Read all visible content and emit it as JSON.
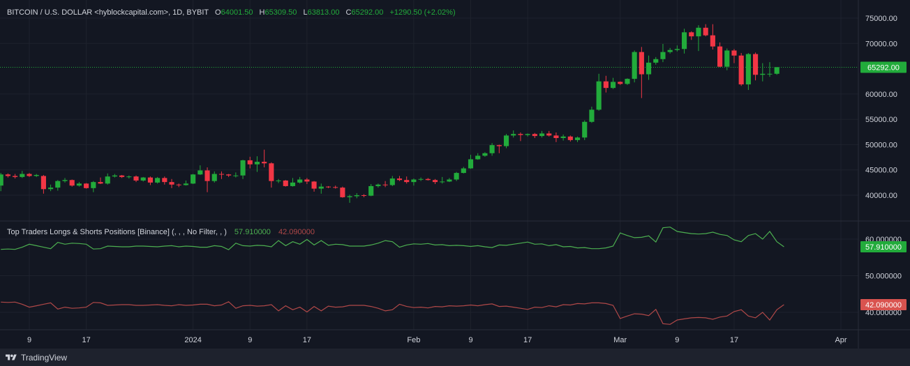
{
  "header": {
    "symbol": "BITCOIN / U.S. DOLLAR <hyblockcapital.com>, 1D, BYBIT",
    "o_label": "O",
    "o_value": "64001.50",
    "h_label": "H",
    "h_value": "65309.50",
    "l_label": "L",
    "l_value": "63813.00",
    "c_label": "C",
    "c_value": "65292.00",
    "change": "+1290.50 (+2.02%)"
  },
  "indicator": {
    "title": "Top Traders Longs & Shorts Positions [Binance] (, , , No Filter, , )",
    "long_value": "57.910000",
    "short_value": "42.090000"
  },
  "footer": {
    "brand": "TradingView"
  },
  "colors": {
    "background": "#131722",
    "up": "#26a69a",
    "candle_up": "#089981",
    "candle_up_draw": "#22ab3b",
    "candle_down": "#f23645",
    "long_line": "#4caf50",
    "short_line": "#b04848",
    "last_price": "#22ab3b"
  },
  "chart_data": [
    {
      "type": "candlestick",
      "title": "BITCOIN / U.S. DOLLAR <hyblockcapital.com>, 1D, BYBIT",
      "last_price": 65292,
      "last_price_label": "65292.00",
      "y_ticks": [
        "75000.00",
        "70000.00",
        "60000.00",
        "55000.00",
        "50000.00",
        "45000.00",
        "40000.00"
      ],
      "y_tick_values": [
        75000,
        70000,
        60000,
        55000,
        50000,
        45000,
        40000
      ],
      "x_ticks": [
        "9",
        "17",
        "2024",
        "9",
        "17",
        "Feb",
        "9",
        "17",
        "Mar",
        "9",
        "17",
        "Apr"
      ],
      "x_tick_dates": [
        "2023-12-09",
        "2023-12-17",
        "2024-01-01",
        "2024-01-09",
        "2024-01-17",
        "2024-02-01",
        "2024-02-09",
        "2024-02-17",
        "2024-03-01",
        "2024-03-09",
        "2024-03-17",
        "2024-04-01"
      ],
      "dates": [
        "2023-12-05",
        "2023-12-06",
        "2023-12-07",
        "2023-12-08",
        "2023-12-09",
        "2023-12-10",
        "2023-12-11",
        "2023-12-12",
        "2023-12-13",
        "2023-12-14",
        "2023-12-15",
        "2023-12-16",
        "2023-12-17",
        "2023-12-18",
        "2023-12-19",
        "2023-12-20",
        "2023-12-21",
        "2023-12-22",
        "2023-12-23",
        "2023-12-24",
        "2023-12-25",
        "2023-12-26",
        "2023-12-27",
        "2023-12-28",
        "2023-12-29",
        "2023-12-30",
        "2023-12-31",
        "2024-01-01",
        "2024-01-02",
        "2024-01-03",
        "2024-01-04",
        "2024-01-05",
        "2024-01-06",
        "2024-01-07",
        "2024-01-08",
        "2024-01-09",
        "2024-01-10",
        "2024-01-11",
        "2024-01-12",
        "2024-01-13",
        "2024-01-14",
        "2024-01-15",
        "2024-01-16",
        "2024-01-17",
        "2024-01-18",
        "2024-01-19",
        "2024-01-20",
        "2024-01-21",
        "2024-01-22",
        "2024-01-23",
        "2024-01-24",
        "2024-01-25",
        "2024-01-26",
        "2024-01-27",
        "2024-01-28",
        "2024-01-29",
        "2024-01-30",
        "2024-01-31",
        "2024-02-01",
        "2024-02-02",
        "2024-02-03",
        "2024-02-04",
        "2024-02-05",
        "2024-02-06",
        "2024-02-07",
        "2024-02-08",
        "2024-02-09",
        "2024-02-10",
        "2024-02-11",
        "2024-02-12",
        "2024-02-13",
        "2024-02-14",
        "2024-02-15",
        "2024-02-16",
        "2024-02-17",
        "2024-02-18",
        "2024-02-19",
        "2024-02-20",
        "2024-02-21",
        "2024-02-22",
        "2024-02-23",
        "2024-02-24",
        "2024-02-25",
        "2024-02-26",
        "2024-02-27",
        "2024-02-28",
        "2024-02-29",
        "2024-03-01",
        "2024-03-02",
        "2024-03-03",
        "2024-03-04",
        "2024-03-05",
        "2024-03-06",
        "2024-03-07",
        "2024-03-08",
        "2024-03-09",
        "2024-03-10",
        "2024-03-11",
        "2024-03-12",
        "2024-03-13",
        "2024-03-14",
        "2024-03-15",
        "2024-03-16",
        "2024-03-17",
        "2024-03-18",
        "2024-03-19",
        "2024-03-20",
        "2024-03-21",
        "2024-03-22",
        "2024-03-23",
        "2024-03-24"
      ],
      "ohlc": [
        [
          41900,
          44400,
          40800,
          44100
        ],
        [
          44100,
          44300,
          43500,
          43800
        ],
        [
          43800,
          44200,
          43300,
          43600
        ],
        [
          43600,
          44800,
          43400,
          44200
        ],
        [
          44200,
          44400,
          43600,
          43800
        ],
        [
          43800,
          44200,
          43600,
          44000
        ],
        [
          43800,
          44000,
          40300,
          41200
        ],
        [
          41200,
          42100,
          40800,
          41500
        ],
        [
          41500,
          43000,
          40900,
          42800
        ],
        [
          42800,
          43400,
          42500,
          43000
        ],
        [
          43000,
          43100,
          41700,
          41900
        ],
        [
          41900,
          42600,
          41700,
          42300
        ],
        [
          42300,
          42400,
          41300,
          41400
        ],
        [
          41400,
          42800,
          40600,
          42600
        ],
        [
          42600,
          43500,
          42200,
          42300
        ],
        [
          42300,
          44300,
          42100,
          43700
        ],
        [
          43700,
          44200,
          43500,
          43900
        ],
        [
          43900,
          44000,
          43400,
          43600
        ],
        [
          43600,
          43900,
          43300,
          43700
        ],
        [
          43700,
          43900,
          42600,
          42900
        ],
        [
          42900,
          43600,
          42700,
          43500
        ],
        [
          43500,
          43700,
          42000,
          42500
        ],
        [
          42500,
          43600,
          42300,
          43400
        ],
        [
          43400,
          43700,
          42100,
          42600
        ],
        [
          42600,
          43200,
          41400,
          42100
        ],
        [
          42100,
          42300,
          41600,
          42000
        ],
        [
          42000,
          42900,
          41900,
          42300
        ],
        [
          42300,
          44200,
          42200,
          44100
        ],
        [
          44100,
          45900,
          44000,
          44900
        ],
        [
          44900,
          45500,
          40600,
          42800
        ],
        [
          42800,
          44700,
          42500,
          44200
        ],
        [
          44200,
          44700,
          43200,
          44100
        ],
        [
          44100,
          44200,
          43600,
          43900
        ],
        [
          43900,
          44500,
          43500,
          43900
        ],
        [
          43900,
          47000,
          43200,
          46900
        ],
        [
          46900,
          47600,
          45300,
          46100
        ],
        [
          46100,
          47700,
          44600,
          46600
        ],
        [
          46600,
          49000,
          45500,
          46300
        ],
        [
          46300,
          46500,
          41500,
          42800
        ],
        [
          42800,
          43200,
          42400,
          42900
        ],
        [
          42900,
          43000,
          41700,
          41800
        ],
        [
          41800,
          43400,
          41700,
          42500
        ],
        [
          42500,
          43600,
          42300,
          43100
        ],
        [
          43100,
          43400,
          42200,
          42700
        ],
        [
          42700,
          42800,
          40700,
          41300
        ],
        [
          41300,
          42300,
          40300,
          41700
        ],
        [
          41700,
          41800,
          41400,
          41600
        ],
        [
          41600,
          41900,
          41300,
          41500
        ],
        [
          41500,
          41700,
          39500,
          39600
        ],
        [
          39600,
          40100,
          38500,
          39800
        ],
        [
          39800,
          40400,
          39400,
          40000
        ],
        [
          40000,
          40200,
          39600,
          39900
        ],
        [
          39900,
          42200,
          39800,
          41800
        ],
        [
          41800,
          42300,
          41500,
          42100
        ],
        [
          42100,
          42800,
          41600,
          42000
        ],
        [
          42000,
          43800,
          41800,
          43300
        ],
        [
          43300,
          43800,
          42800,
          43000
        ],
        [
          43000,
          43700,
          42300,
          42600
        ],
        [
          42600,
          43300,
          41900,
          43100
        ],
        [
          43100,
          43500,
          42800,
          43200
        ],
        [
          43200,
          43400,
          42900,
          43000
        ],
        [
          43000,
          43200,
          42200,
          42600
        ],
        [
          42600,
          43600,
          42300,
          42700
        ],
        [
          42700,
          43400,
          42600,
          43100
        ],
        [
          43100,
          44600,
          42800,
          44400
        ],
        [
          44400,
          45600,
          44300,
          45300
        ],
        [
          45300,
          48000,
          45200,
          47100
        ],
        [
          47100,
          48300,
          47000,
          47800
        ],
        [
          47800,
          48500,
          47600,
          48300
        ],
        [
          48300,
          50300,
          47800,
          49900
        ],
        [
          49900,
          50000,
          48300,
          49700
        ],
        [
          49700,
          52100,
          49300,
          51800
        ],
        [
          51800,
          52800,
          51400,
          52100
        ],
        [
          52100,
          52400,
          50700,
          51900
        ],
        [
          51900,
          52200,
          51600,
          52100
        ],
        [
          52100,
          52300,
          51300,
          51700
        ],
        [
          51700,
          52700,
          51400,
          52200
        ],
        [
          52200,
          52700,
          51600,
          51800
        ],
        [
          51800,
          52400,
          50500,
          51300
        ],
        [
          51300,
          52000,
          50800,
          51600
        ],
        [
          51600,
          51800,
          50600,
          50900
        ],
        [
          50900,
          51600,
          50500,
          51400
        ],
        [
          51400,
          54800,
          50900,
          54500
        ],
        [
          54500,
          57500,
          54300,
          56900
        ],
        [
          56900,
          64000,
          56700,
          62500
        ],
        [
          62500,
          63600,
          60300,
          61200
        ],
        [
          61200,
          63200,
          61000,
          62400
        ],
        [
          62400,
          62500,
          61800,
          62000
        ],
        [
          62000,
          63100,
          61800,
          63000
        ],
        [
          63000,
          68600,
          62300,
          68300
        ],
        [
          68300,
          69300,
          59200,
          63900
        ],
        [
          63900,
          67600,
          62800,
          66200
        ],
        [
          66200,
          67300,
          65800,
          66900
        ],
        [
          66900,
          69900,
          66300,
          68300
        ],
        [
          68300,
          69100,
          68000,
          68700
        ],
        [
          68700,
          69600,
          68400,
          68900
        ],
        [
          68900,
          72900,
          68000,
          72200
        ],
        [
          72200,
          72400,
          70700,
          71400
        ],
        [
          71400,
          73600,
          68500,
          73100
        ],
        [
          73100,
          73800,
          71400,
          71600
        ],
        [
          71600,
          73800,
          68800,
          69400
        ],
        [
          69400,
          70200,
          65300,
          65400
        ],
        [
          65400,
          69000,
          64700,
          68600
        ],
        [
          68600,
          68900,
          66100,
          67600
        ],
        [
          67600,
          68100,
          61600,
          61900
        ],
        [
          61900,
          68100,
          60800,
          67900
        ],
        [
          67900,
          68200,
          62700,
          63800
        ],
        [
          63800,
          66100,
          62500,
          64000
        ],
        [
          64000,
          66300,
          63400,
          64000
        ],
        [
          64000,
          65300,
          63800,
          65300
        ]
      ]
    },
    {
      "type": "line",
      "title": "Top Traders Longs & Shorts Positions [Binance] (, , , No Filter, , )",
      "y_ticks": [
        "60.000000",
        "50.000000",
        "40.000000"
      ],
      "y_tick_values": [
        60,
        50,
        40
      ],
      "ylim": [
        37.3,
        65.0
      ],
      "series": [
        {
          "name": "long",
          "last_label": "57.910000",
          "values": [
            57.2,
            57.3,
            57.2,
            57.8,
            58.6,
            58.2,
            57.8,
            57.4,
            59.1,
            58.6,
            58.9,
            58.8,
            58.6,
            57.3,
            57.4,
            58.1,
            58.0,
            57.9,
            57.9,
            58.1,
            58.1,
            58.0,
            57.9,
            58.1,
            58.2,
            57.9,
            58.1,
            58.0,
            57.8,
            57.8,
            58.2,
            58.0,
            57.1,
            58.9,
            58.2,
            58.1,
            58.3,
            58.2,
            57.9,
            59.6,
            58.2,
            59.3,
            58.6,
            59.9,
            58.4,
            59.6,
            58.3,
            58.6,
            58.5,
            58.1,
            58.1,
            58.1,
            58.4,
            58.9,
            59.6,
            59.3,
            57.8,
            58.4,
            58.7,
            58.6,
            58.8,
            58.4,
            58.5,
            58.2,
            58.3,
            58.2,
            58.0,
            58.2,
            57.9,
            57.7,
            58.4,
            58.3,
            58.6,
            58.9,
            59.2,
            58.6,
            58.7,
            58.2,
            58.5,
            57.9,
            58.0,
            57.6,
            57.7,
            57.4,
            57.4,
            57.6,
            58.1,
            61.7,
            61.0,
            60.4,
            60.5,
            60.9,
            59.2,
            63.1,
            63.3,
            62.1,
            61.8,
            61.5,
            61.4,
            61.5,
            61.9,
            61.3,
            61.0,
            59.8,
            59.3,
            61.0,
            61.5,
            60.0,
            62.1,
            59.3,
            57.9
          ]
        },
        {
          "name": "short",
          "last_label": "42.090000",
          "values": [
            42.8,
            42.7,
            42.8,
            42.2,
            41.4,
            41.8,
            42.2,
            42.6,
            40.9,
            41.4,
            41.1,
            41.2,
            41.4,
            42.7,
            42.6,
            41.9,
            42.0,
            42.1,
            42.1,
            41.9,
            41.9,
            42.0,
            42.1,
            41.9,
            41.8,
            42.1,
            41.9,
            42.0,
            42.2,
            42.2,
            41.8,
            42.0,
            42.9,
            41.1,
            41.8,
            41.9,
            41.7,
            41.8,
            42.1,
            40.4,
            41.8,
            40.7,
            41.4,
            40.1,
            41.6,
            40.4,
            41.7,
            41.4,
            41.5,
            41.9,
            41.9,
            41.9,
            41.6,
            41.1,
            40.4,
            40.7,
            42.2,
            41.6,
            41.3,
            41.4,
            41.2,
            41.6,
            41.5,
            41.8,
            41.7,
            41.8,
            42.0,
            41.8,
            42.1,
            42.3,
            41.6,
            41.7,
            41.4,
            41.1,
            40.8,
            41.4,
            41.3,
            41.8,
            41.5,
            42.1,
            42.0,
            42.4,
            42.3,
            42.6,
            42.6,
            42.4,
            41.9,
            38.3,
            39.0,
            39.6,
            39.5,
            39.1,
            40.8,
            36.9,
            36.7,
            37.9,
            38.2,
            38.5,
            38.6,
            38.5,
            38.1,
            38.7,
            39.0,
            40.2,
            40.7,
            39.0,
            38.5,
            40.0,
            37.9,
            40.7,
            42.1
          ]
        }
      ]
    }
  ]
}
